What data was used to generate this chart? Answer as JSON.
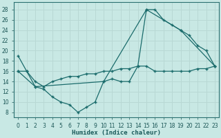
{
  "xlabel": "Humidex (Indice chaleur)",
  "bg_color": "#c8e8e4",
  "grid_color": "#b8d8d4",
  "line_color": "#1a6b6b",
  "xlim": [
    -0.5,
    23.5
  ],
  "ylim": [
    7,
    29.5
  ],
  "xticks": [
    0,
    1,
    2,
    3,
    4,
    5,
    6,
    7,
    8,
    9,
    10,
    11,
    12,
    13,
    14,
    15,
    16,
    17,
    18,
    19,
    20,
    21,
    22,
    23
  ],
  "yticks": [
    8,
    10,
    12,
    14,
    16,
    18,
    20,
    22,
    24,
    26,
    28
  ],
  "line1_x": [
    0,
    1,
    2,
    3,
    4,
    5,
    6,
    7,
    8,
    9,
    10,
    11,
    12,
    13,
    14,
    15,
    16,
    17,
    18,
    19,
    20,
    21,
    22,
    23
  ],
  "line1_y": [
    19,
    16,
    13,
    12.5,
    11,
    10,
    9.5,
    8,
    9,
    10,
    14,
    14.5,
    14,
    14,
    17,
    28,
    28,
    26,
    25,
    24,
    23,
    21,
    20,
    17
  ],
  "line2_x": [
    0,
    1,
    2,
    3,
    4,
    5,
    6,
    7,
    8,
    9,
    10,
    11,
    12,
    13,
    14,
    15,
    16,
    17,
    18,
    19,
    20,
    21,
    22,
    23
  ],
  "line2_y": [
    16,
    16,
    14,
    13,
    14,
    14.5,
    15,
    15,
    15.5,
    15.5,
    16,
    16,
    16.5,
    16.5,
    17,
    17,
    16,
    16,
    16,
    16,
    16,
    16.5,
    16.5,
    17
  ],
  "line3_x": [
    0,
    2,
    10,
    15,
    19,
    23
  ],
  "line3_y": [
    16,
    13,
    14,
    28,
    24,
    17
  ]
}
